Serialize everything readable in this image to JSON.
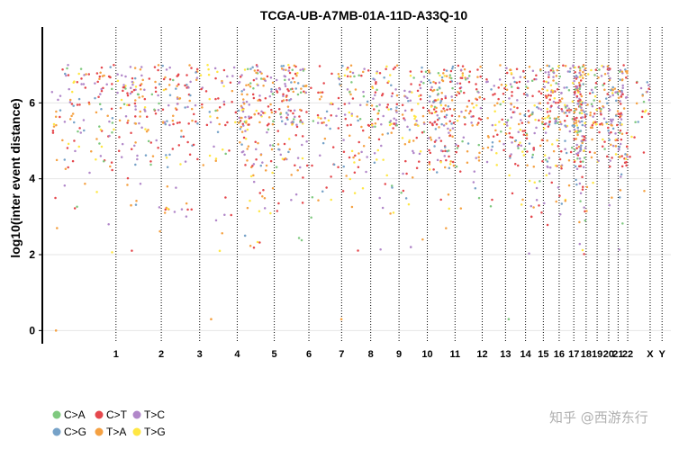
{
  "watermark": "知乎 @西游东行",
  "chart_data": {
    "type": "scatter",
    "title": "TCGA-UB-A7MB-01A-11D-A33Q-10",
    "ylabel": "log10(inter event distance)",
    "xlabel": "",
    "ylim": [
      -0.3,
      8
    ],
    "yticks": [
      0,
      2,
      4,
      6
    ],
    "grid": true,
    "legend_position": "bottom-left",
    "chromosomes": [
      {
        "label": "1",
        "boundary": 0.1303
      },
      {
        "label": "2",
        "boundary": 0.2197
      },
      {
        "label": "3",
        "boundary": 0.2954
      },
      {
        "label": "4",
        "boundary": 0.3695
      },
      {
        "label": "5",
        "boundary": 0.4426
      },
      {
        "label": "6",
        "boundary": 0.5109
      },
      {
        "label": "7",
        "boundary": 0.5754
      },
      {
        "label": "8",
        "boundary": 0.6328
      },
      {
        "label": "9",
        "boundary": 0.6887
      },
      {
        "label": "10",
        "boundary": 0.7445
      },
      {
        "label": "11",
        "boundary": 0.7992
      },
      {
        "label": "12",
        "boundary": 0.8528
      },
      {
        "label": "13",
        "boundary": 0.8988
      },
      {
        "label": "14",
        "boundary": 0.9383
      },
      {
        "label": "15",
        "boundary": 0.9734
      },
      {
        "label": "16",
        "boundary": 1.0046
      },
      {
        "label": "17",
        "boundary": 1.0335
      },
      {
        "label": "18",
        "boundary": 1.0578
      },
      {
        "label": "19",
        "boundary": 1.0795
      },
      {
        "label": "20",
        "boundary": 1.1023
      },
      {
        "label": "21",
        "boundary": 1.1209
      },
      {
        "label": "22",
        "boundary": 1.1398
      },
      {
        "label": "X",
        "boundary": 1.1841
      },
      {
        "label": "Y",
        "boundary": 1.2076
      }
    ],
    "series": [
      {
        "name": "C>A",
        "color": "#7FC97F"
      },
      {
        "name": "C>G",
        "color": "#76A2C8"
      },
      {
        "name": "C>T",
        "color": "#E5484D"
      },
      {
        "name": "T>A",
        "color": "#F5A142"
      },
      {
        "name": "T>C",
        "color": "#B187C9"
      },
      {
        "name": "T>G",
        "color": "#FFE743"
      }
    ],
    "chromosome_point_counts": [
      120,
      110,
      95,
      55,
      150,
      130,
      50,
      70,
      85,
      70,
      140,
      80,
      45,
      75,
      65,
      90,
      60,
      160,
      35,
      40,
      45,
      70,
      25,
      0
    ],
    "series_weights": [
      0.08,
      0.1,
      0.28,
      0.22,
      0.22,
      0.1
    ],
    "outlier_points": [
      {
        "x": 0.012,
        "y": 0.0,
        "series": "T>A"
      },
      {
        "x": 0.318,
        "y": 0.3,
        "series": "T>A"
      },
      {
        "x": 0.575,
        "y": 0.3,
        "series": "T>A"
      },
      {
        "x": 0.905,
        "y": 0.3,
        "series": "C>A"
      },
      {
        "x": 0.335,
        "y": 2.1,
        "series": "T>G"
      },
      {
        "x": 0.712,
        "y": 2.2,
        "series": "T>C"
      },
      {
        "x": 0.014,
        "y": 2.7,
        "series": "T>A"
      },
      {
        "x": 0.385,
        "y": 2.5,
        "series": "C>G"
      },
      {
        "x": 0.95,
        "y": 3.0,
        "series": "C>T"
      },
      {
        "x": 0.16,
        "y": 3.3,
        "series": "T>A"
      }
    ]
  }
}
